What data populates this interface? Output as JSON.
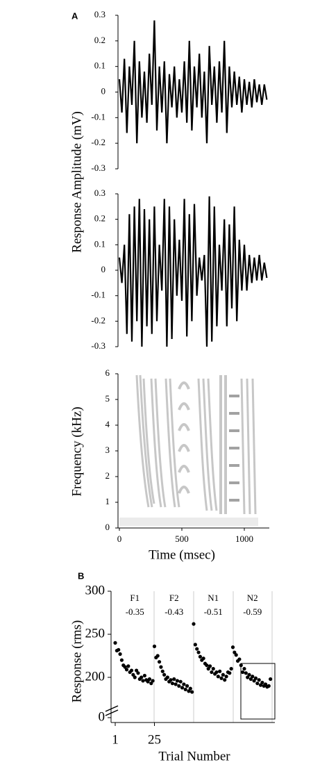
{
  "panel_labels": [
    "A",
    "B"
  ],
  "chart_data": [
    {
      "type": "line",
      "ylabel": "Response Amplitude (mV)",
      "color": "#000000",
      "xlim": [
        0,
        1200
      ],
      "ylim": [
        -0.3,
        0.3
      ],
      "yticks": [
        0.3,
        0.2,
        0.1,
        0,
        -0.1,
        -0.2,
        -0.3
      ],
      "x": [
        0,
        20,
        40,
        60,
        80,
        100,
        120,
        140,
        160,
        180,
        200,
        220,
        240,
        260,
        280,
        300,
        320,
        340,
        360,
        380,
        400,
        420,
        440,
        460,
        480,
        500,
        520,
        540,
        560,
        580,
        600,
        620,
        640,
        660,
        680,
        700,
        720,
        740,
        760,
        780,
        800,
        820,
        840,
        860,
        880,
        900,
        920,
        940,
        960,
        980,
        1000,
        1020,
        1040,
        1060,
        1080,
        1100,
        1120,
        1140,
        1160,
        1180
      ],
      "values": [
        0.05,
        -0.08,
        0.13,
        -0.16,
        0.1,
        -0.05,
        0.2,
        -0.2,
        0.12,
        -0.1,
        0.08,
        -0.12,
        0.15,
        -0.05,
        0.28,
        -0.15,
        0.1,
        -0.08,
        0.12,
        -0.2,
        0.07,
        -0.06,
        0.1,
        -0.1,
        0.05,
        -0.08,
        0.12,
        -0.12,
        0.2,
        -0.15,
        0.1,
        -0.06,
        0.15,
        -0.1,
        0.08,
        -0.2,
        0.18,
        -0.05,
        0.1,
        -0.12,
        0.12,
        -0.08,
        0.2,
        -0.16,
        0.1,
        -0.06,
        0.08,
        -0.05,
        0.06,
        -0.08,
        0.05,
        -0.05,
        0.04,
        -0.06,
        0.05,
        -0.04,
        0.03,
        -0.05,
        0.03,
        -0.03
      ]
    },
    {
      "type": "line",
      "color": "#000000",
      "xlim": [
        0,
        1200
      ],
      "ylim": [
        -0.3,
        0.3
      ],
      "yticks": [
        0.3,
        0.2,
        0.1,
        0,
        -0.1,
        -0.2,
        -0.3
      ],
      "x": [
        0,
        20,
        40,
        60,
        80,
        100,
        120,
        140,
        160,
        180,
        200,
        220,
        240,
        260,
        280,
        300,
        320,
        340,
        360,
        380,
        400,
        420,
        440,
        460,
        480,
        500,
        520,
        540,
        560,
        580,
        600,
        620,
        640,
        660,
        680,
        700,
        720,
        740,
        760,
        780,
        800,
        820,
        840,
        860,
        880,
        900,
        920,
        940,
        960,
        980,
        1000,
        1020,
        1040,
        1060,
        1080,
        1100,
        1120,
        1140,
        1160,
        1180
      ],
      "values": [
        0.05,
        -0.05,
        0.1,
        -0.25,
        0.22,
        -0.28,
        0.25,
        -0.2,
        0.28,
        -0.3,
        0.24,
        -0.22,
        0.2,
        -0.25,
        0.25,
        -0.2,
        0.1,
        -0.08,
        0.28,
        -0.3,
        0.25,
        -0.27,
        0.2,
        -0.1,
        0.12,
        -0.12,
        0.28,
        -0.26,
        0.22,
        -0.2,
        0.26,
        -0.1,
        0.05,
        -0.04,
        0.06,
        -0.3,
        0.29,
        -0.28,
        0.25,
        -0.22,
        0.1,
        -0.08,
        0.2,
        -0.22,
        0.18,
        -0.15,
        0.25,
        -0.2,
        0.12,
        -0.08,
        0.1,
        -0.08,
        0.06,
        -0.05,
        0.05,
        -0.04,
        0.06,
        -0.04,
        0.03,
        -0.03
      ]
    },
    {
      "type": "spectrogram",
      "ylabel": "Frequency (kHz)",
      "xlabel": "Time (msec)",
      "xlim": [
        0,
        1200
      ],
      "xticks": [
        0,
        500,
        1000
      ],
      "ylim": [
        0,
        6
      ],
      "yticks": [
        0,
        1,
        2,
        3,
        4,
        5,
        6
      ]
    },
    {
      "type": "scatter",
      "ylabel": "Response (rms)",
      "xlabel": "Trial Number",
      "color": "#000000",
      "xlim": [
        1,
        97
      ],
      "xticks": [
        1,
        25
      ],
      "ylim": [
        0,
        300
      ],
      "yticks": [
        0,
        200,
        250,
        300
      ],
      "axis_break": [
        20,
        180
      ],
      "annotations": [
        {
          "label": "F1",
          "value": -0.35
        },
        {
          "label": "F2",
          "value": -0.43
        },
        {
          "label": "N1",
          "value": -0.51
        },
        {
          "label": "N2",
          "value": -0.59
        }
      ],
      "x": [
        1,
        2,
        3,
        4,
        5,
        6,
        7,
        8,
        9,
        10,
        11,
        12,
        13,
        14,
        15,
        16,
        17,
        18,
        19,
        20,
        21,
        22,
        23,
        24,
        25,
        26,
        27,
        28,
        29,
        30,
        31,
        32,
        33,
        34,
        35,
        36,
        37,
        38,
        39,
        40,
        41,
        42,
        43,
        44,
        45,
        46,
        47,
        48,
        49,
        50,
        51,
        52,
        53,
        54,
        55,
        56,
        57,
        58,
        59,
        60,
        61,
        62,
        63,
        64,
        65,
        66,
        67,
        68,
        69,
        70,
        71,
        72,
        73,
        74,
        75,
        76,
        77,
        78,
        79,
        80,
        81,
        82,
        83,
        84,
        85,
        86,
        87,
        88,
        89,
        90,
        91,
        92,
        93,
        94,
        95,
        96
      ],
      "values": [
        240,
        231,
        232,
        227,
        220,
        214,
        212,
        209,
        213,
        206,
        208,
        203,
        200,
        208,
        205,
        198,
        200,
        196,
        202,
        197,
        195,
        198,
        193,
        196,
        236,
        223,
        225,
        218,
        212,
        207,
        203,
        198,
        200,
        195,
        197,
        193,
        198,
        192,
        196,
        190,
        195,
        188,
        192,
        186,
        190,
        184,
        187,
        183,
        262,
        238,
        233,
        229,
        224,
        220,
        222,
        216,
        214,
        210,
        213,
        206,
        210,
        204,
        206,
        201,
        207,
        199,
        203,
        197,
        201,
        206,
        205,
        210,
        235,
        229,
        226,
        219,
        221,
        214,
        206,
        210,
        205,
        200,
        203,
        198,
        201,
        196,
        199,
        193,
        197,
        191,
        194,
        190,
        192,
        189,
        190,
        198
      ]
    }
  ]
}
